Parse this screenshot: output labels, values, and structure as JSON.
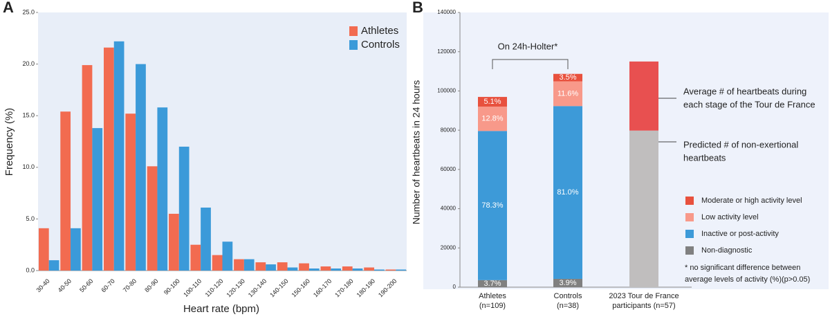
{
  "chart_data": [
    {
      "type": "bar",
      "panel_label": "A",
      "x_label": "Heart rate (bpm)",
      "y_label": "Frequency (%)",
      "categories": [
        "30-40",
        "40-50",
        "50-60",
        "60-70",
        "70-80",
        "80-90",
        "90-100",
        "100-110",
        "110-120",
        "120-130",
        "130-140",
        "140-150",
        "150-160",
        "160-170",
        "170-180",
        "180-190",
        "190-200"
      ],
      "series": [
        {
          "name": "Athletes",
          "color": "#f26b50",
          "values": [
            4.1,
            15.4,
            19.9,
            21.6,
            15.2,
            10.1,
            5.5,
            2.5,
            1.5,
            1.1,
            0.8,
            0.8,
            0.7,
            0.4,
            0.4,
            0.3,
            0.1
          ]
        },
        {
          "name": "Controls",
          "color": "#3b9ad9",
          "values": [
            1.0,
            4.1,
            13.8,
            22.2,
            20.0,
            15.8,
            12.0,
            6.1,
            2.8,
            1.1,
            0.6,
            0.3,
            0.2,
            0.2,
            0.2,
            0.1,
            0.1
          ]
        }
      ],
      "ylim": [
        0,
        25
      ],
      "yticks": [
        {
          "value": 0,
          "label": "0.0"
        },
        {
          "value": 5,
          "label": "5.0"
        },
        {
          "value": 10,
          "label": "10.0"
        },
        {
          "value": 15,
          "label": "15.0"
        },
        {
          "value": 20,
          "label": "20.0"
        },
        {
          "value": 25,
          "label": "25.0"
        }
      ],
      "legend": "upper right"
    },
    {
      "type": "stacked_bar",
      "panel_label": "B",
      "y_label": "Number of heartbeats in 24 hours",
      "categories": [
        [
          "Athletes",
          "(n=109)"
        ],
        [
          "Controls",
          "(n=38)"
        ],
        [
          "2023 Tour de France",
          "participants (n=57)"
        ]
      ],
      "series": [
        {
          "name": "Non-diagnostic",
          "color": "#808080",
          "colors": [
            "#808080",
            "#808080",
            "#c0bebe"
          ],
          "values": [
            3600,
            4240,
            79800
          ],
          "share_labels": [
            "3.7%",
            "3.9%",
            null
          ]
        },
        {
          "name": "Inactive or post-activity",
          "color": "#3d9ad8",
          "colors": [
            "#3d9ad8",
            "#3d9ad8",
            "#3d9ad8"
          ],
          "values": [
            76000,
            88050,
            null
          ],
          "share_labels": [
            "78.3%",
            "81.0%",
            null
          ]
        },
        {
          "name": "Low activity level",
          "color": "#f8998a",
          "colors": [
            "#f8998a",
            "#f8998a",
            "#f8998a"
          ],
          "values": [
            12400,
            12610,
            null
          ],
          "share_labels": [
            "12.8%",
            "11.6%",
            null
          ]
        },
        {
          "name": "Moderate or high activity level",
          "color": "#e8513e",
          "colors": [
            "#e8513e",
            "#e8513e",
            "#e85050"
          ],
          "values": [
            4950,
            3800,
            35200
          ],
          "share_labels": [
            "5.1%",
            "3.5%",
            null
          ]
        }
      ],
      "ylim": [
        0,
        140000
      ],
      "yticks": [
        0,
        20000,
        40000,
        60000,
        80000,
        100000,
        120000,
        140000
      ],
      "legend": "lower right",
      "annotations": {
        "bracket": "On 24h-Holter*",
        "tour_average": [
          "Average # of heartbeats during",
          "each stage of the Tour de France"
        ],
        "tour_predicted": [
          "Predicted # of non-exertional",
          "heartbeats"
        ],
        "footnote": [
          "* no significant difference between",
          "average levels of activity (%)(p>0.05)"
        ]
      }
    }
  ]
}
